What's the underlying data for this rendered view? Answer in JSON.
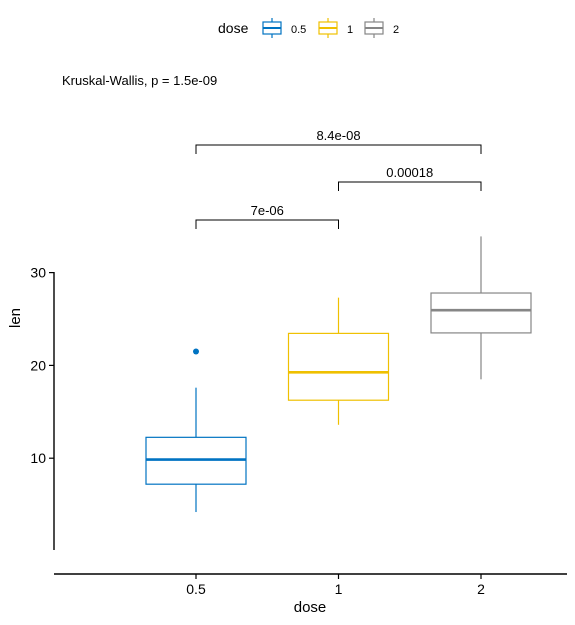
{
  "chart_data": {
    "type": "box",
    "annotation": "Kruskal-Wallis, p = 1.5e-09",
    "xlabel": "dose",
    "ylabel": "len",
    "categories": [
      "0.5",
      "1",
      "2"
    ],
    "y_ticks": [
      10,
      20,
      30
    ],
    "ylim": [
      0,
      37
    ],
    "legend": {
      "title": "dose",
      "position": "top",
      "entries": [
        "0.5",
        "1",
        "2"
      ]
    },
    "colors": [
      "#0073C2",
      "#EFC000",
      "#868686"
    ],
    "boxes": [
      {
        "category": "0.5",
        "min": 4.2,
        "q1": 7.2,
        "median": 9.85,
        "q3": 12.25,
        "max": 17.6,
        "outliers": [
          21.5
        ]
      },
      {
        "category": "1",
        "min": 13.6,
        "q1": 16.25,
        "median": 19.25,
        "q3": 23.45,
        "max": 27.3,
        "outliers": []
      },
      {
        "category": "2",
        "min": 18.5,
        "q1": 23.5,
        "median": 25.95,
        "q3": 27.8,
        "max": 33.9,
        "outliers": []
      }
    ],
    "comparisons": [
      {
        "group1": "0.5",
        "group2": "1",
        "label": "7e-06"
      },
      {
        "group1": "1",
        "group2": "2",
        "label": "0.00018"
      },
      {
        "group1": "0.5",
        "group2": "2",
        "label": "8.4e-08"
      }
    ]
  }
}
